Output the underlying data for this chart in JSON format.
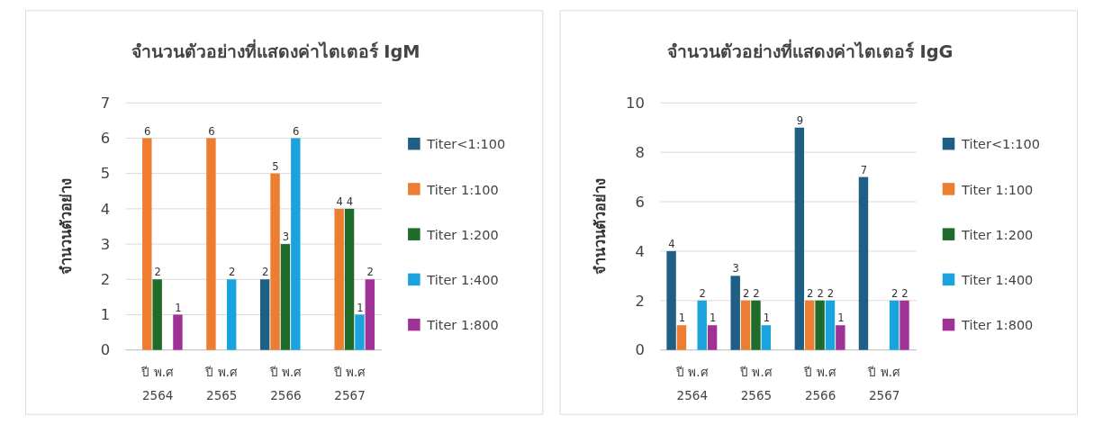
{
  "chart_data": [
    {
      "type": "bar",
      "title": "จำนวนตัวอย่างที่แสดงค่าไตเตอร์ IgM",
      "ylabel": "จำนวนตัวอย่าง",
      "categories": [
        "ปี พ.ศ 2564",
        "ปี พ.ศ 2565",
        "ปี พ.ศ 2566",
        "ปี พ.ศ 2567"
      ],
      "ylim": [
        0,
        7
      ],
      "yticks": [
        0,
        1,
        2,
        3,
        4,
        5,
        6,
        7
      ],
      "grid": "y",
      "legend": "right",
      "data_labels": true,
      "series": [
        {
          "name": "Titer<1:100",
          "color": "#1f5f85",
          "values": [
            null,
            null,
            2,
            null
          ]
        },
        {
          "name": "Titer 1:100",
          "color": "#ed7d31",
          "values": [
            6,
            6,
            5,
            4
          ]
        },
        {
          "name": "Titer 1:200",
          "color": "#1e6b2a",
          "values": [
            2,
            null,
            3,
            4
          ]
        },
        {
          "name": "Titer 1:400",
          "color": "#1aa3dd",
          "values": [
            null,
            2,
            6,
            1
          ]
        },
        {
          "name": "Titer 1:800",
          "color": "#a03296",
          "values": [
            1,
            null,
            null,
            2
          ]
        }
      ]
    },
    {
      "type": "bar",
      "title": "จำนวนตัวอย่างที่แสดงค่าไตเตอร์ IgG",
      "ylabel": "จำนวนตัวอย่าง",
      "categories": [
        "ปี พ.ศ 2564",
        "ปี พ.ศ 2565",
        "ปี พ.ศ 2566",
        "ปี พ.ศ 2567"
      ],
      "ylim": [
        0,
        10
      ],
      "yticks": [
        0,
        2,
        4,
        6,
        8,
        10
      ],
      "grid": "y",
      "legend": "right",
      "data_labels": true,
      "series": [
        {
          "name": "Titer<1:100",
          "color": "#1f5f85",
          "values": [
            4,
            3,
            9,
            7
          ]
        },
        {
          "name": "Titer 1:100",
          "color": "#ed7d31",
          "values": [
            1,
            2,
            2,
            null
          ]
        },
        {
          "name": "Titer 1:200",
          "color": "#1e6b2a",
          "values": [
            null,
            2,
            2,
            null
          ]
        },
        {
          "name": "Titer 1:400",
          "color": "#1aa3dd",
          "values": [
            2,
            1,
            2,
            2
          ]
        },
        {
          "name": "Titer 1:800",
          "color": "#a03296",
          "values": [
            1,
            null,
            1,
            2
          ]
        }
      ]
    }
  ]
}
